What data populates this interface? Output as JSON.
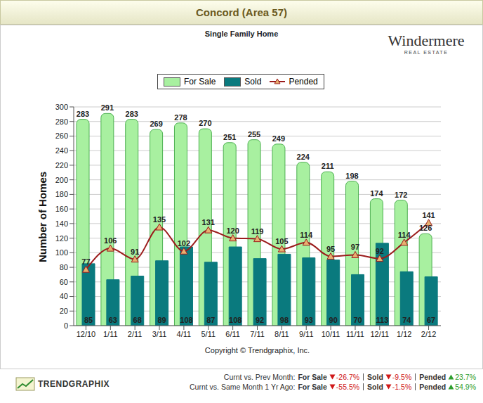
{
  "header": {
    "title": "Concord (Area 57)"
  },
  "logo": {
    "name": "Windermere",
    "tagline": "REAL ESTATE"
  },
  "chart_data": {
    "type": "bar",
    "title": "Single Family Home",
    "y_label": "Number of Homes",
    "categories": [
      "12/10",
      "1/11",
      "2/11",
      "3/11",
      "4/11",
      "5/11",
      "6/11",
      "7/11",
      "8/11",
      "9/11",
      "10/11",
      "11/11",
      "12/11",
      "1/12",
      "2/12"
    ],
    "series": [
      {
        "name": "For Sale",
        "type": "bar",
        "color": "#a8f0a0",
        "values": [
          283,
          291,
          283,
          269,
          278,
          270,
          251,
          255,
          249,
          224,
          211,
          198,
          174,
          172,
          126
        ]
      },
      {
        "name": "Sold",
        "type": "bar",
        "color": "#0a7a7e",
        "values": [
          85,
          63,
          68,
          89,
          108,
          87,
          108,
          92,
          98,
          93,
          90,
          70,
          113,
          74,
          67
        ]
      },
      {
        "name": "Pended",
        "type": "line",
        "color": "#9b1c1c",
        "marker": "triangle",
        "values": [
          77,
          106,
          91,
          135,
          102,
          131,
          120,
          119,
          105,
          114,
          95,
          97,
          92,
          114,
          141
        ]
      }
    ],
    "ylim": [
      0,
      300
    ],
    "yticks": [
      0,
      20,
      40,
      60,
      80,
      100,
      120,
      140,
      160,
      180,
      200,
      220,
      240,
      260,
      280,
      300
    ],
    "grid": true,
    "legend": "top",
    "data_labels": true
  },
  "copyright": "Copyright © Trendgraphix, Inc.",
  "footer": {
    "brand": "TRENDGRAPHIX",
    "comparisons": [
      {
        "label": "Curnt vs. Prev Month:",
        "items": [
          {
            "name": "For Sale",
            "direction": "down",
            "change": "-26.7%"
          },
          {
            "name": "Sold",
            "direction": "down",
            "change": "-9.5%"
          },
          {
            "name": "Pended",
            "direction": "up",
            "change": "23.7%"
          }
        ]
      },
      {
        "label": "Curnt vs. Same Month 1 Yr Ago:",
        "items": [
          {
            "name": "For Sale",
            "direction": "down",
            "change": "-55.5%"
          },
          {
            "name": "Sold",
            "direction": "down",
            "change": "-1.5%"
          },
          {
            "name": "Pended",
            "direction": "up",
            "change": "54.9%"
          }
        ]
      }
    ]
  }
}
